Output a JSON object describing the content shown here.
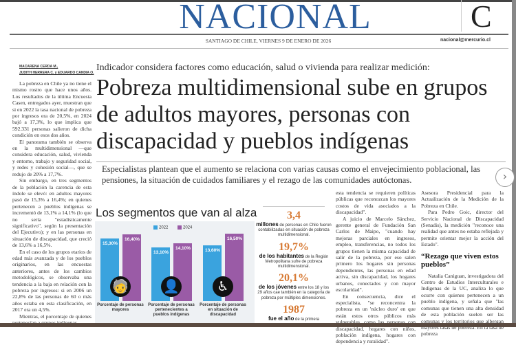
{
  "masthead": {
    "section": "NACIONAL",
    "section_letter": "C",
    "dateline": "SANTIAGO DE CHILE, VIERNES 9 DE ENERO DE 2026",
    "email": "nacional@mercurio.cl"
  },
  "byline": [
    "MACARENA CERDA M.,",
    "JUDITH HERRERA C. y EDUARDO CANDIA O."
  ],
  "kicker": "Indicador considera factores como educación, salud o vivienda para realizar medición:",
  "headline": "Pobreza multidimensional sube en grupos de adultos mayores, personas con discapacidad y pueblos indígenas",
  "lead": "Especialistas plantean que el aumento se relaciona con varias causas como el envejecimiento poblacional, las pensiones, la situación de cuidados familiares y el rezago de las comunidades autóctonas.",
  "col1": [
    "La pobreza en Chile ya no tiene el mismo rostro que hace unos años. Los resultados de la última Encuesta Casen, entregados ayer, muestran que si en 2022 la tasa nacional de pobreza por ingresos era de 20,5%, en 2024 bajó a 17,3%, lo que implica que 592.331 personas salieron de dicha condición en esos dos años.",
    "El panorama también se observa en la multidimensional —que considera educación, salud, vivienda y entorno, trabajo y seguridad social, y redes y cohesión social—, que se redujo de 20% a 17,7%.",
    "Sin embargo, en tres segmentos de la población la carencia de esta índole se elevó: en adultos mayores pasó de 15,3% a 16,4%; en quienes pertenecen a pueblos indígenas se incrementó de 13,1% a 14,1% (lo que no sería \"estadísticamente significativo\", según la presentación del Ejecutivo); y en las personas en situación de discapacidad, que creció de 13,6% a 16,5%.",
    "En el caso de los grupos etarios de edad más avanzada y de los pueblos originarios, en las encuestas anteriores, antes de los cambios metodológicos, se observaba una tendencia a la baja en relación con la pobreza por ingresos: si en 2006 un 22,8% de las personas de 60 o más años estaba en esta clasificación, en 2017 era un 4,5%.",
    "Mientras, el porcentaje de quienes pertenecían a grupos indígenas"
  ],
  "chart_data": {
    "type": "bar",
    "title": "Los segmentos que van al alza",
    "categories": [
      "Porcentaje de personas mayores",
      "Porcentaje de personas pertenecientes a pueblos indígenas",
      "Porcentaje de personas en situación de discapacidad"
    ],
    "series": [
      {
        "name": "2022",
        "color": "#3aa3de",
        "values": [
          15.3,
          13.1,
          13.6
        ],
        "labels": [
          "15,30%",
          "13,10%",
          "13,60%"
        ]
      },
      {
        "name": "2024",
        "color": "#9a5ba6",
        "values": [
          16.4,
          14.1,
          16.5
        ],
        "labels": [
          "16,40%",
          "14,10%",
          "16,50%"
        ]
      }
    ],
    "ylim": [
      0,
      16.5
    ],
    "icons": [
      "elderly-person-icon",
      "indigenous-person-icon",
      "wheelchair-icon"
    ]
  },
  "stats": [
    {
      "num": "3,4",
      "bold": "millones",
      "text": " de personas en Chile fueron contabilizadas en situación de pobreza multidimensional."
    },
    {
      "num": "19,7%",
      "bold": "de los habitantes",
      "text": " de la Región Metropolitana sufre de pobreza multidimensional."
    },
    {
      "num": "20,1%",
      "bold": "de los jóvenes",
      "text": " entre los 18 y los 29 años cae también en la categoría de pobreza por múltiples dimensiones."
    },
    {
      "num": "1987",
      "bold": "fue el año",
      "text": " de la primera"
    }
  ],
  "col3": [
    "esta tendencia se requieren políticas públicas que reconozcan los mayores costos de vida asociados a la discapacidad\".",
    "A juicio de Marcelo Sánchez, gerente general de Fundación San Carlos de Maipo, \"cuando hay mejoras parciales en ingresos, empleo, transferencias, no todos los grupos tienen la misma capacidad de salir de la pobreza, por eso salen primero los hogares sin personas dependientes, las personas en edad activa, sin discapacidad, los hogares urbanos, conectados y con mayor escolaridad\".",
    "En consecuencia, dice el especialista, \"se reconcentra la pobreza en un 'núcleo duro' en que están estos otros públicos más vulnerables, como las personas con discapacidad, hogares con niños, población indígena, hogares con dependencia y ruralidad\"."
  ],
  "col4": {
    "p1": "Asesora Presidencial para la Actualización de la Medición de la Pobreza en Chile.",
    "p2": "Para Pedro Goic, director del Servicio Nacional de Discapacidad (Senadis), la medición \"reconoce una realidad que antes no estaba reflejada y permite orientar mejor la acción del Estado\".",
    "subhead": "“Rezago que viven estos pueblos”",
    "p3": "Natalia Caniguan, investigadora del Centro de Estudios Interculturales e Indígenas de la UC, analiza lo que ocurre con quienes pertenecen a un pueblo indígena, y señala que \"las comunas que tienen una alta densidad de esta población suelen ser las comunas y los territorios que albergan mayores tasas de pobreza. En la tasa de pobreza"
  },
  "nav": {
    "next_icon": "›"
  }
}
